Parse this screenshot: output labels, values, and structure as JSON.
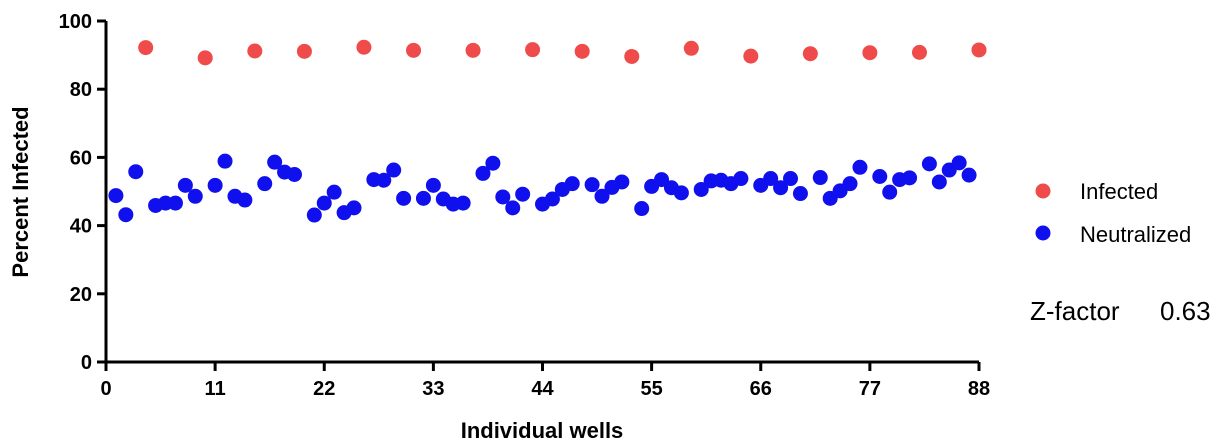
{
  "chart_data": {
    "type": "scatter",
    "xlabel": "Individual wells",
    "ylabel": "Percent Infected",
    "xlim": [
      0,
      88
    ],
    "ylim": [
      0,
      100
    ],
    "x_ticks": [
      "0",
      "11",
      "22",
      "33",
      "44",
      "55",
      "66",
      "77",
      "88"
    ],
    "y_ticks": [
      "0",
      "20",
      "40",
      "60",
      "80",
      "100"
    ],
    "grid": false,
    "legend_position": "right",
    "series": [
      {
        "name": "Infected",
        "color": "#f04b4b",
        "points": [
          [
            4,
            92.2
          ],
          [
            10,
            89.2
          ],
          [
            15,
            91.2
          ],
          [
            20,
            91.1
          ],
          [
            26,
            92.3
          ],
          [
            31,
            91.4
          ],
          [
            37,
            91.4
          ],
          [
            43,
            91.6
          ],
          [
            48,
            91.1
          ],
          [
            53,
            89.6
          ],
          [
            59,
            92.0
          ],
          [
            65,
            89.7
          ],
          [
            71,
            90.4
          ],
          [
            77,
            90.7
          ],
          [
            82,
            90.8
          ],
          [
            88,
            91.5
          ]
        ]
      },
      {
        "name": "Neutralized",
        "color": "#1010ee",
        "points": [
          [
            1,
            48.8
          ],
          [
            2,
            43.2
          ],
          [
            3,
            55.8
          ],
          [
            5,
            45.9
          ],
          [
            6,
            46.6
          ],
          [
            7,
            46.6
          ],
          [
            8,
            51.8
          ],
          [
            9,
            48.6
          ],
          [
            11,
            51.8
          ],
          [
            12,
            58.9
          ],
          [
            13,
            48.6
          ],
          [
            14,
            47.5
          ],
          [
            16,
            52.3
          ],
          [
            17,
            58.6
          ],
          [
            18,
            55.7
          ],
          [
            19,
            55.0
          ],
          [
            21,
            43.1
          ],
          [
            22,
            46.6
          ],
          [
            23,
            49.8
          ],
          [
            24,
            43.8
          ],
          [
            25,
            45.2
          ],
          [
            27,
            53.5
          ],
          [
            28,
            53.3
          ],
          [
            29,
            56.3
          ],
          [
            30,
            48.0
          ],
          [
            32,
            48.0
          ],
          [
            33,
            51.8
          ],
          [
            34,
            47.8
          ],
          [
            35,
            46.3
          ],
          [
            36,
            46.6
          ],
          [
            38,
            55.3
          ],
          [
            39,
            58.3
          ],
          [
            40,
            48.4
          ],
          [
            41,
            45.2
          ],
          [
            42,
            49.2
          ],
          [
            44,
            46.3
          ],
          [
            45,
            47.8
          ],
          [
            46,
            50.6
          ],
          [
            47,
            52.3
          ],
          [
            49,
            52.0
          ],
          [
            50,
            48.6
          ],
          [
            51,
            51.2
          ],
          [
            52,
            52.8
          ],
          [
            54,
            45.0
          ],
          [
            55,
            51.5
          ],
          [
            56,
            53.5
          ],
          [
            57,
            51.1
          ],
          [
            58,
            49.6
          ],
          [
            60,
            50.6
          ],
          [
            61,
            53.1
          ],
          [
            62,
            53.3
          ],
          [
            63,
            52.3
          ],
          [
            64,
            53.8
          ],
          [
            66,
            51.8
          ],
          [
            67,
            53.8
          ],
          [
            68,
            51.1
          ],
          [
            69,
            53.8
          ],
          [
            70,
            49.4
          ],
          [
            72,
            54.1
          ],
          [
            73,
            48.0
          ],
          [
            74,
            50.2
          ],
          [
            75,
            52.3
          ],
          [
            76,
            57.1
          ],
          [
            78,
            54.4
          ],
          [
            79,
            49.8
          ],
          [
            80,
            53.5
          ],
          [
            81,
            54.0
          ],
          [
            83,
            58.1
          ],
          [
            84,
            52.8
          ],
          [
            85,
            56.3
          ],
          [
            86,
            58.4
          ],
          [
            87,
            54.8
          ]
        ]
      }
    ],
    "annotations": [
      {
        "label": "Z-factor",
        "value": "0.63"
      }
    ]
  }
}
